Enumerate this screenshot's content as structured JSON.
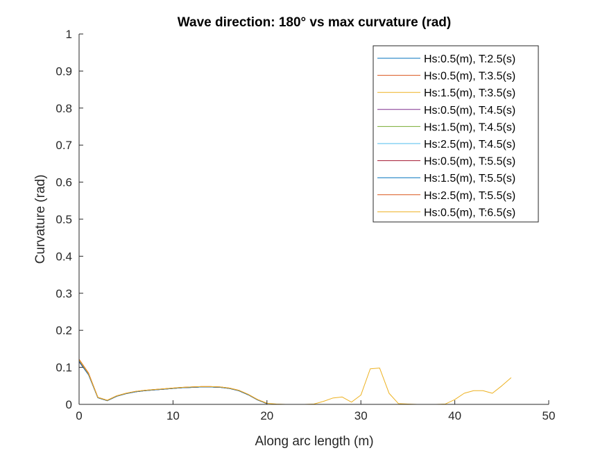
{
  "chart_data": {
    "type": "line",
    "title": "Wave direction: 180° vs max curvature (rad)",
    "xlabel": "Along arc length (m)",
    "ylabel": "Curvature (rad)",
    "xlim": [
      0,
      50
    ],
    "ylim": [
      0,
      1
    ],
    "xticks": [
      "0",
      "10",
      "20",
      "30",
      "40",
      "50"
    ],
    "yticks": [
      "0",
      "0.1",
      "0.2",
      "0.3",
      "0.4",
      "0.5",
      "0.6",
      "0.7",
      "0.8",
      "0.9",
      "1"
    ],
    "grid": false,
    "legend_position": "top-right",
    "series": [
      {
        "name": "Hs:0.5(m), T:2.5(s)",
        "color": "#0072BD",
        "x": [
          0,
          1,
          2,
          3,
          4,
          5,
          6,
          7,
          8,
          9,
          10,
          11,
          12,
          13,
          14,
          15,
          16,
          17,
          18,
          19,
          20
        ],
        "y": [
          0.115,
          0.08,
          0.018,
          0.01,
          0.022,
          0.029,
          0.034,
          0.037,
          0.039,
          0.041,
          0.043,
          0.045,
          0.046,
          0.047,
          0.047,
          0.046,
          0.043,
          0.037,
          0.026,
          0.012,
          0.002
        ]
      },
      {
        "name": "Hs:0.5(m), T:3.5(s)",
        "color": "#D95319",
        "x": [
          0,
          1,
          2,
          3,
          4,
          5,
          6,
          7,
          8,
          9,
          10,
          11,
          12,
          13,
          14,
          15,
          16,
          17,
          18,
          19,
          20
        ],
        "y": [
          0.122,
          0.085,
          0.019,
          0.011,
          0.023,
          0.03,
          0.035,
          0.038,
          0.04,
          0.042,
          0.044,
          0.046,
          0.047,
          0.048,
          0.048,
          0.047,
          0.044,
          0.038,
          0.027,
          0.013,
          0.003
        ]
      },
      {
        "name": "Hs:1.5(m), T:3.5(s)",
        "color": "#EDB120",
        "x": [
          0,
          1,
          2,
          3,
          4,
          5,
          6,
          7,
          8,
          9,
          10,
          11,
          12,
          13,
          14,
          15,
          16,
          17,
          18,
          19,
          20
        ],
        "y": [
          0.118,
          0.082,
          0.018,
          0.01,
          0.022,
          0.029,
          0.034,
          0.037,
          0.039,
          0.041,
          0.043,
          0.045,
          0.046,
          0.047,
          0.047,
          0.046,
          0.043,
          0.037,
          0.026,
          0.012,
          0.002
        ]
      },
      {
        "name": "Hs:0.5(m), T:4.5(s)",
        "color": "#7E2F8E",
        "x": [
          0,
          1,
          2,
          3,
          4,
          5,
          6,
          7,
          8,
          9,
          10,
          11,
          12,
          13,
          14,
          15,
          16,
          17,
          18,
          19,
          20
        ],
        "y": [
          0.116,
          0.081,
          0.018,
          0.01,
          0.022,
          0.029,
          0.034,
          0.037,
          0.039,
          0.041,
          0.043,
          0.045,
          0.046,
          0.047,
          0.047,
          0.046,
          0.043,
          0.037,
          0.026,
          0.012,
          0.002
        ]
      },
      {
        "name": "Hs:1.5(m), T:4.5(s)",
        "color": "#77AC30",
        "x": [
          0,
          1,
          2,
          3,
          4,
          5,
          6,
          7,
          8,
          9,
          10,
          11,
          12,
          13,
          14,
          15,
          16,
          17,
          18,
          19,
          20
        ],
        "y": [
          0.117,
          0.082,
          0.018,
          0.01,
          0.022,
          0.029,
          0.034,
          0.037,
          0.039,
          0.041,
          0.043,
          0.045,
          0.046,
          0.047,
          0.047,
          0.046,
          0.043,
          0.037,
          0.026,
          0.012,
          0.002
        ]
      },
      {
        "name": "Hs:2.5(m), T:4.5(s)",
        "color": "#4DBEEE",
        "x": [
          0,
          1,
          2,
          3,
          4,
          5,
          6,
          7,
          8,
          9,
          10,
          11,
          12,
          13,
          14,
          15,
          16,
          17,
          18,
          19,
          20
        ],
        "y": [
          0.118,
          0.082,
          0.018,
          0.01,
          0.022,
          0.029,
          0.034,
          0.037,
          0.039,
          0.041,
          0.043,
          0.045,
          0.046,
          0.047,
          0.047,
          0.046,
          0.043,
          0.037,
          0.026,
          0.012,
          0.002
        ]
      },
      {
        "name": "Hs:0.5(m), T:5.5(s)",
        "color": "#A2142F",
        "x": [
          0,
          1,
          2,
          3,
          4,
          5,
          6,
          7,
          8,
          9,
          10,
          11,
          12,
          13,
          14,
          15,
          16,
          17,
          18,
          19,
          20
        ],
        "y": [
          0.116,
          0.081,
          0.018,
          0.01,
          0.022,
          0.029,
          0.034,
          0.037,
          0.039,
          0.041,
          0.043,
          0.045,
          0.046,
          0.047,
          0.047,
          0.046,
          0.043,
          0.037,
          0.026,
          0.012,
          0.002
        ]
      },
      {
        "name": "Hs:1.5(m), T:5.5(s)",
        "color": "#0072BD",
        "x": [
          0,
          1,
          2,
          3,
          4,
          5,
          6,
          7,
          8,
          9,
          10,
          11,
          12,
          13,
          14,
          15,
          16,
          17,
          18,
          19,
          20
        ],
        "y": [
          0.117,
          0.081,
          0.018,
          0.01,
          0.022,
          0.029,
          0.034,
          0.037,
          0.039,
          0.041,
          0.043,
          0.045,
          0.046,
          0.047,
          0.047,
          0.046,
          0.043,
          0.037,
          0.026,
          0.012,
          0.002
        ]
      },
      {
        "name": "Hs:2.5(m), T:5.5(s)",
        "color": "#D95319",
        "x": [
          0,
          1,
          2,
          3,
          4,
          5,
          6,
          7,
          8,
          9,
          10,
          11,
          12,
          13,
          14,
          15,
          16,
          17,
          18,
          19,
          20
        ],
        "y": [
          0.121,
          0.084,
          0.019,
          0.011,
          0.023,
          0.03,
          0.035,
          0.038,
          0.04,
          0.042,
          0.044,
          0.046,
          0.047,
          0.048,
          0.048,
          0.047,
          0.044,
          0.038,
          0.027,
          0.013,
          0.003
        ]
      },
      {
        "name": "Hs:0.5(m), T:6.5(s)",
        "color": "#EDB120",
        "x": [
          0,
          1,
          2,
          3,
          4,
          5,
          6,
          7,
          8,
          9,
          10,
          11,
          12,
          13,
          14,
          15,
          16,
          17,
          18,
          19,
          20,
          21,
          22,
          23,
          24,
          25,
          26,
          27,
          28,
          29,
          30,
          31,
          32,
          33,
          34,
          35,
          36,
          37,
          38,
          39,
          40,
          41,
          42,
          43,
          44,
          45,
          46
        ],
        "y": [
          0.12,
          0.083,
          0.019,
          0.011,
          0.023,
          0.03,
          0.035,
          0.038,
          0.04,
          0.042,
          0.044,
          0.046,
          0.047,
          0.048,
          0.048,
          0.047,
          0.044,
          0.038,
          0.027,
          0.013,
          0.003,
          0.001,
          0.0,
          0.0,
          0.0,
          0.001,
          0.008,
          0.017,
          0.02,
          0.006,
          0.025,
          0.096,
          0.098,
          0.03,
          0.002,
          0.001,
          0.0,
          0.0,
          0.0,
          0.001,
          0.013,
          0.03,
          0.037,
          0.037,
          0.03,
          0.05,
          0.072
        ]
      }
    ]
  }
}
